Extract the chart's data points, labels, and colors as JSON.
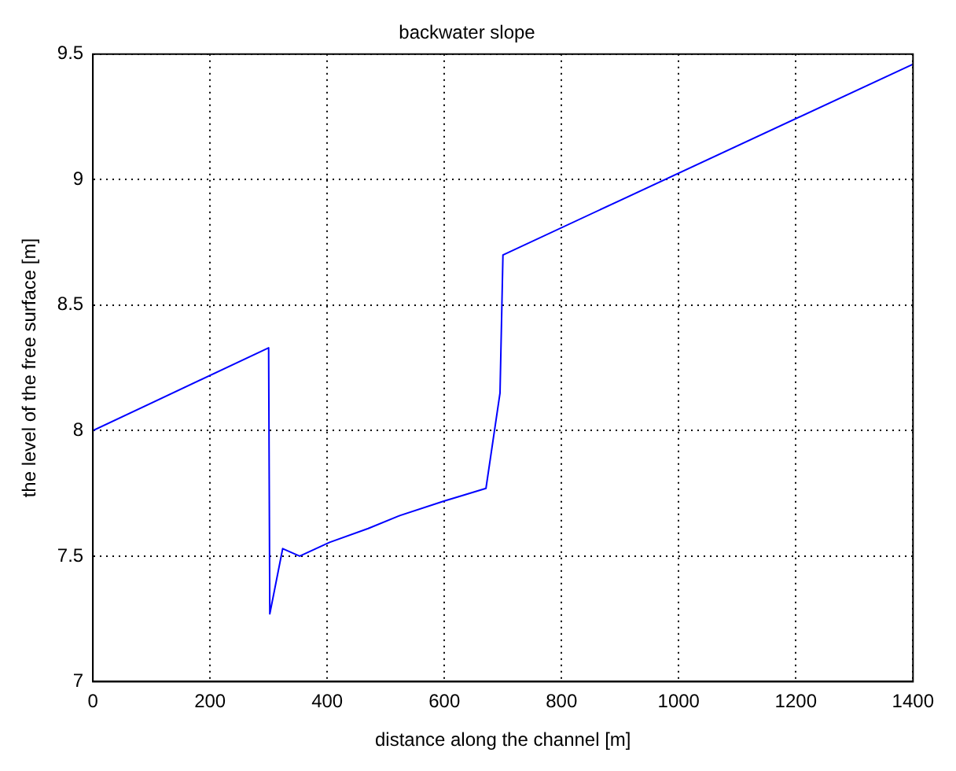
{
  "chart_data": {
    "type": "line",
    "title": "backwater slope",
    "xlabel": "distance along the channel [m]",
    "ylabel": "the level of the free surface [m]",
    "series": [
      {
        "color": "#0000ff",
        "x": [
          0,
          300,
          302,
          324,
          353,
          404,
          470,
          522,
          600,
          629,
          671,
          695,
          700,
          1400
        ],
        "values": [
          8.0,
          8.33,
          7.27,
          7.53,
          7.5,
          7.555,
          7.61,
          7.66,
          7.72,
          7.74,
          7.77,
          8.15,
          8.7,
          9.46
        ]
      }
    ],
    "xlim": [
      0,
      1400
    ],
    "xticks": [
      0,
      200,
      400,
      600,
      800,
      1000,
      1200,
      1400
    ],
    "ylim": [
      7,
      9.5
    ],
    "yticks": [
      7,
      7.5,
      8,
      8.5,
      9,
      9.5
    ],
    "grid": true,
    "line_style": "solid",
    "marker": "none",
    "legend": false
  }
}
